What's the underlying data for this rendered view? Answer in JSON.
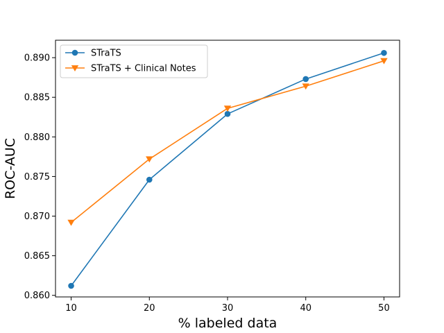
{
  "chart_data": {
    "type": "line",
    "title": "",
    "xlabel": "% labeled data",
    "ylabel": "ROC-AUC",
    "x": [
      10,
      20,
      30,
      40,
      50
    ],
    "xticks": [
      "10",
      "20",
      "30",
      "40",
      "50"
    ],
    "yticks": [
      "0.860",
      "0.865",
      "0.870",
      "0.875",
      "0.880",
      "0.885",
      "0.890"
    ],
    "xlim": [
      8,
      52
    ],
    "ylim": [
      0.8598,
      0.8922
    ],
    "grid": false,
    "legend_position": "upper-left",
    "series": [
      {
        "name": "STraTS",
        "values": [
          0.8612,
          0.8746,
          0.8829,
          0.8873,
          0.8906
        ],
        "color": "#1f77b4",
        "marker": "circle"
      },
      {
        "name": "STraTS + Clinical Notes",
        "values": [
          0.8692,
          0.8772,
          0.8836,
          0.8864,
          0.8896
        ],
        "color": "#ff7f0e",
        "marker": "triangle-down"
      }
    ]
  }
}
